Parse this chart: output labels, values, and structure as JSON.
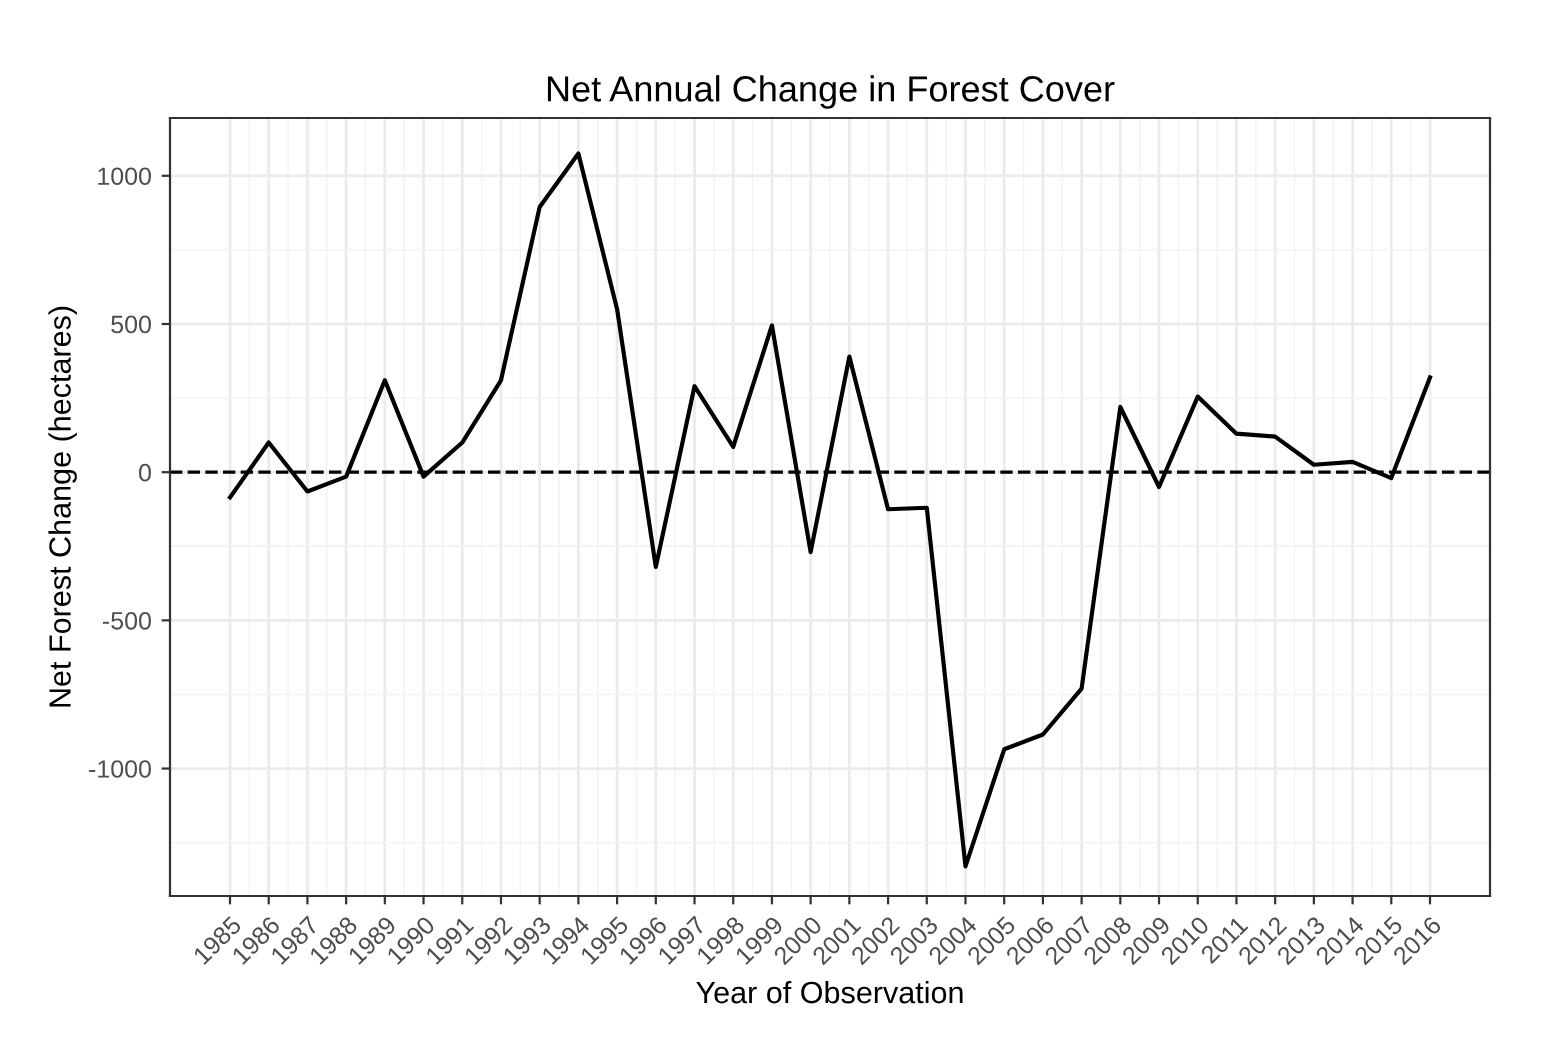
{
  "chart_data": {
    "type": "line",
    "title": "Net Annual Change in Forest Cover",
    "xlabel": "Year of Observation",
    "ylabel": "Net Forest Change (hectares)",
    "x": [
      1985,
      1986,
      1987,
      1988,
      1989,
      1990,
      1991,
      1992,
      1993,
      1994,
      1995,
      1996,
      1997,
      1998,
      1999,
      2000,
      2001,
      2002,
      2003,
      2004,
      2005,
      2006,
      2007,
      2008,
      2009,
      2010,
      2011,
      2012,
      2013,
      2014,
      2015,
      2016
    ],
    "series": [
      {
        "color": "#000000",
        "values": [
          -85,
          100,
          -65,
          -15,
          310,
          -15,
          100,
          310,
          895,
          1075,
          550,
          -320,
          290,
          85,
          495,
          -270,
          390,
          -125,
          -120,
          -1330,
          -935,
          -885,
          -730,
          220,
          -50,
          255,
          130,
          120,
          25,
          35,
          -20,
          320
        ]
      }
    ],
    "xlim": [
      1983.45,
      2017.55
    ],
    "xticks": [
      1985,
      1986,
      1987,
      1988,
      1989,
      1990,
      1991,
      1992,
      1993,
      1994,
      1995,
      1996,
      1997,
      1998,
      1999,
      2000,
      2001,
      2002,
      2003,
      2004,
      2005,
      2006,
      2007,
      2008,
      2009,
      2010,
      2011,
      2012,
      2013,
      2014,
      2015,
      2016
    ],
    "ylim": [
      -1430,
      1195
    ],
    "yticks": [
      -1000,
      -500,
      0,
      500,
      1000
    ],
    "ref_lines": [
      {
        "axis": "y",
        "value": 0,
        "color": "#000000",
        "line_style": "dashed"
      }
    ],
    "grid": true,
    "legend": false,
    "marker": "none",
    "line_style": "solid"
  }
}
